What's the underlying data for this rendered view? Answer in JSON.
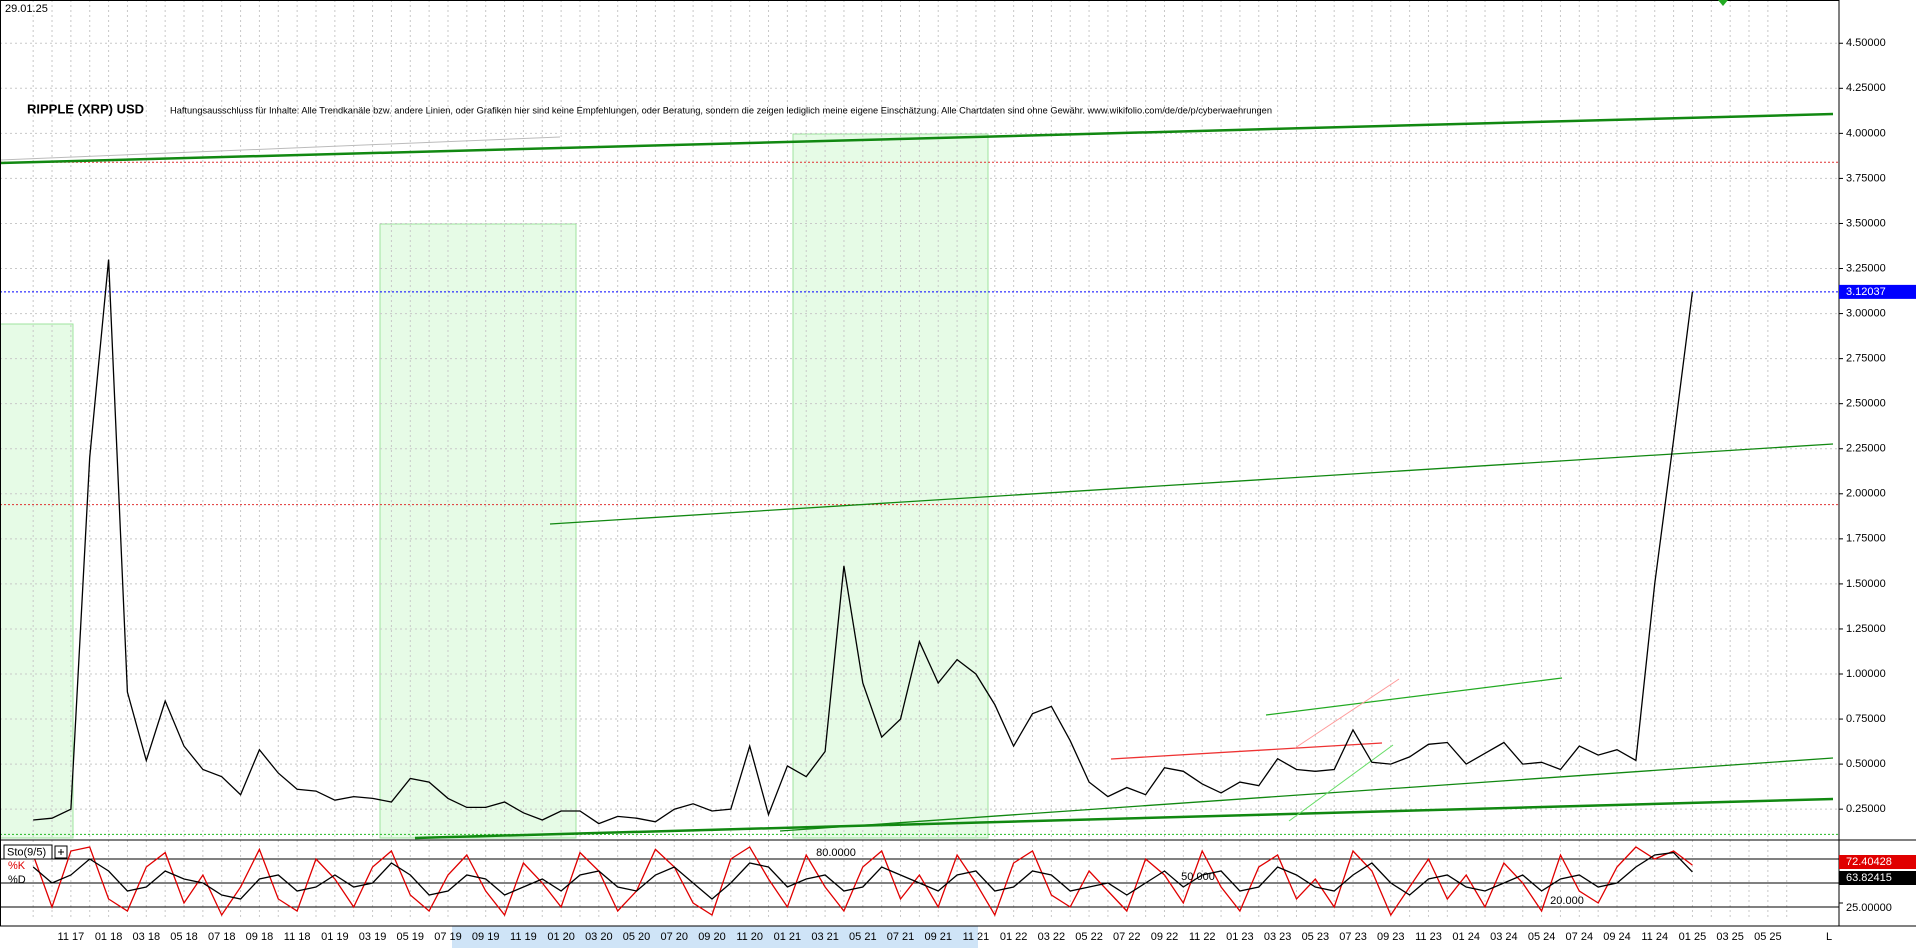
{
  "chart_data": [
    {
      "type": "line",
      "date": "29.01.25",
      "title": "RIPPLE (XRP) USD",
      "subtitle": "Haftungsausschluss für Inhalte: Alle Trendkanäle bzw. andere Linien, oder Grafiken hier sind keine Empfehlungen, oder Beratung, sondern die zeigen lediglich meine eigene Einschätzung. Alle Chartdaten sind ohne Gewähr. www.wikifolio.com/de/de/p/cyberwaehrungen",
      "categories": [
        null,
        null,
        "11 17",
        null,
        "01 18",
        null,
        "03 18",
        null,
        "05 18",
        null,
        "07 18",
        null,
        "09 18",
        null,
        "11 18",
        null,
        "01 19",
        null,
        "03 19",
        null,
        "05 19",
        null,
        "07 19",
        null,
        "09 19",
        null,
        "11 19",
        null,
        "01 20",
        null,
        "03 20",
        null,
        "05 20",
        null,
        "07 20",
        null,
        "09 20",
        null,
        "11 20",
        null,
        "01 21",
        null,
        "03 21",
        null,
        "05 21",
        null,
        "07 21",
        null,
        "09 21",
        null,
        "11 21",
        null,
        "01 22",
        null,
        "03 22",
        null,
        "05 22",
        null,
        "07 22",
        null,
        "09 22",
        null,
        "11 22",
        null,
        "01 23",
        null,
        "03 23",
        null,
        "05 23",
        null,
        "07 23",
        null,
        "09 23",
        null,
        "11 23",
        null,
        "01 24",
        null,
        "03 24",
        null,
        "05 24",
        null,
        "07 24",
        null,
        "09 24",
        null,
        "11 24",
        null,
        "01 25",
        null,
        "03 25",
        null,
        "05 25",
        null
      ],
      "values": [
        0.19,
        0.2,
        0.25,
        2.2,
        3.3,
        0.9,
        0.52,
        0.85,
        0.6,
        0.47,
        0.43,
        0.33,
        0.58,
        0.45,
        0.36,
        0.35,
        0.3,
        0.32,
        0.31,
        0.29,
        0.42,
        0.4,
        0.31,
        0.26,
        0.26,
        0.29,
        0.23,
        0.19,
        0.24,
        0.24,
        0.17,
        0.21,
        0.2,
        0.18,
        0.25,
        0.28,
        0.24,
        0.25,
        0.6,
        0.22,
        0.49,
        0.43,
        0.57,
        1.6,
        0.95,
        0.65,
        0.75,
        1.18,
        0.95,
        1.08,
        1.0,
        0.83,
        0.6,
        0.78,
        0.82,
        0.63,
        0.4,
        0.32,
        0.37,
        0.33,
        0.48,
        0.46,
        0.39,
        0.34,
        0.4,
        0.38,
        0.53,
        0.47,
        0.46,
        0.47,
        0.69,
        0.51,
        0.5,
        0.54,
        0.61,
        0.62,
        0.5,
        0.56,
        0.62,
        0.5,
        0.51,
        0.47,
        0.6,
        0.55,
        0.58,
        0.52,
        1.5,
        2.3,
        3.12037,
        null,
        null,
        null,
        null,
        null
      ],
      "color": "#000000",
      "last_color": "#0000ff",
      "x_end_label": "L",
      "ylim": [
        0.09,
        4.74
      ],
      "yticks": [
        {
          "value": 0.25,
          "label": "0.25000"
        },
        {
          "value": 0.5,
          "label": "0.50000"
        },
        {
          "value": 0.75,
          "label": "0.75000"
        },
        {
          "value": 1.0,
          "label": "1.00000"
        },
        {
          "value": 1.25,
          "label": "1.25000"
        },
        {
          "value": 1.5,
          "label": "1.50000"
        },
        {
          "value": 1.75,
          "label": "1.75000"
        },
        {
          "value": 2.0,
          "label": "2.00000"
        },
        {
          "value": 2.25,
          "label": "2.25000"
        },
        {
          "value": 2.5,
          "label": "2.50000"
        },
        {
          "value": 2.75,
          "label": "2.75000"
        },
        {
          "value": 3.0,
          "label": "3.00000"
        },
        {
          "value": 3.25,
          "label": "3.25000"
        },
        {
          "value": 3.5,
          "label": "3.50000"
        },
        {
          "value": 3.75,
          "label": "3.75000"
        },
        {
          "value": 4.0,
          "label": "4.00000"
        },
        {
          "value": 4.25,
          "label": "4.25000"
        },
        {
          "value": 4.5,
          "label": "4.50000"
        }
      ],
      "hlines": [
        {
          "value": 3.84,
          "color": "#e03030"
        },
        {
          "value": 1.94,
          "color": "#e03030"
        },
        {
          "value": 0.11,
          "color": "#22bb22"
        }
      ],
      "grid": true
    },
    {
      "type": "line",
      "title": "Sto(9/5)",
      "series": [
        {
          "name": "%K",
          "color": "#e00000",
          "values": [
            85,
            20,
            90,
            95,
            30,
            15,
            70,
            88,
            25,
            60,
            10,
            45,
            92,
            30,
            15,
            80,
            55,
            20,
            70,
            90,
            35,
            15,
            60,
            85,
            40,
            10,
            75,
            50,
            20,
            88,
            65,
            15,
            40,
            92,
            70,
            25,
            10,
            80,
            95,
            55,
            20,
            85,
            45,
            15,
            70,
            90,
            30,
            60,
            20,
            85,
            50,
            10,
            75,
            90,
            35,
            20,
            65,
            40,
            15,
            80,
            60,
            25,
            90,
            45,
            15,
            70,
            85,
            30,
            55,
            20,
            90,
            65,
            10,
            45,
            80,
            30,
            60,
            20,
            75,
            50,
            15,
            85,
            40,
            25,
            70,
            95,
            80,
            90,
            72.40428,
            null,
            null,
            null,
            null,
            null
          ]
        },
        {
          "name": "%D",
          "color": "#000000",
          "values": [
            70,
            50,
            60,
            80,
            65,
            40,
            45,
            65,
            55,
            50,
            35,
            30,
            55,
            60,
            40,
            45,
            60,
            45,
            50,
            75,
            60,
            35,
            40,
            60,
            55,
            35,
            45,
            55,
            40,
            60,
            65,
            45,
            40,
            60,
            70,
            50,
            30,
            50,
            75,
            70,
            45,
            55,
            60,
            40,
            45,
            70,
            60,
            50,
            40,
            60,
            65,
            40,
            45,
            65,
            60,
            40,
            45,
            50,
            35,
            50,
            65,
            45,
            60,
            65,
            40,
            45,
            70,
            60,
            45,
            40,
            60,
            75,
            50,
            35,
            55,
            60,
            45,
            40,
            50,
            60,
            40,
            55,
            60,
            45,
            50,
            70,
            85,
            88,
            63.82415,
            null,
            null,
            null,
            null,
            null
          ]
        }
      ],
      "ylim": [
        5,
        100
      ],
      "yticks": [
        {
          "value": 80,
          "label": "80.0000"
        },
        {
          "value": 50,
          "label": "50.000"
        },
        {
          "value": 20,
          "label": "20.000"
        }
      ],
      "y2ticks": [
        {
          "value": 25,
          "label": "25.00000"
        }
      ]
    }
  ]
}
